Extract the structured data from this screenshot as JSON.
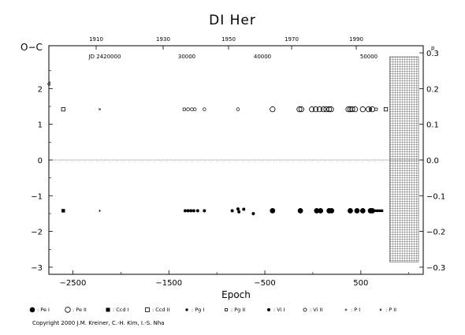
{
  "title": "DI Her",
  "copyright": "Copyright 2000 J.M. Kreiner, C.-H. Kim, I.-S. Nha",
  "legend": [
    {
      "label": ": Pe I",
      "marker": "filled-circle"
    },
    {
      "label": ": Pe II",
      "marker": "open-circle"
    },
    {
      "label": ": Ccd I",
      "marker": "filled-square"
    },
    {
      "label": ": Ccd II",
      "marker": "open-square"
    },
    {
      "label": ": Pg I",
      "marker": "small-filled-square"
    },
    {
      "label": ": Pg II",
      "marker": "small-open-square"
    },
    {
      "label": ": Vi I",
      "marker": "small-filled-circle"
    },
    {
      "label": ": Vi II",
      "marker": "small-open-circle"
    },
    {
      "label": ": P I",
      "marker": "plus"
    },
    {
      "label": ": P II",
      "marker": "cross"
    }
  ],
  "chart_data": {
    "type": "scatter",
    "title": "DI Her",
    "xlabel": "Epoch",
    "ylabel": "O−C",
    "y_unit_label": "d",
    "right_unit_label": "p",
    "xlim": [
      -2750,
      1150
    ],
    "ylim": [
      -3.2,
      3.2
    ],
    "x_ticks": [
      -2500,
      -1500,
      -500,
      500
    ],
    "y_ticks": [
      -3,
      -2,
      -1,
      0,
      1,
      2
    ],
    "right_ticks": [
      "0.3",
      "0.2",
      "0.1",
      "0.0",
      "−0.1",
      "−0.2",
      "−0.3"
    ],
    "top_year_ticks": [
      "1910",
      "1930",
      "1950",
      "1970",
      "1990"
    ],
    "top_jd_ticks": [
      "JD 2420000",
      "30000",
      "40000",
      "50000"
    ],
    "zero_line": true,
    "hatched_region_start_epoch": 800,
    "series": [
      {
        "name": "Pe I",
        "marker": "filled-circle",
        "points": [
          [
            -420,
            -1.42
          ],
          [
            -130,
            -1.42
          ],
          [
            40,
            -1.42
          ],
          [
            80,
            -1.42
          ],
          [
            170,
            -1.42
          ],
          [
            195,
            -1.42
          ],
          [
            390,
            -1.42
          ],
          [
            460,
            -1.42
          ],
          [
            520,
            -1.42
          ],
          [
            600,
            -1.42
          ],
          [
            620,
            -1.42
          ]
        ]
      },
      {
        "name": "Pe II",
        "marker": "open-circle",
        "points": [
          [
            -420,
            1.42
          ],
          [
            -140,
            1.42
          ],
          [
            -120,
            1.42
          ],
          [
            -10,
            1.42
          ],
          [
            30,
            1.42
          ],
          [
            70,
            1.42
          ],
          [
            110,
            1.42
          ],
          [
            140,
            1.42
          ],
          [
            170,
            1.42
          ],
          [
            190,
            1.42
          ],
          [
            370,
            1.42
          ],
          [
            390,
            1.42
          ],
          [
            410,
            1.42
          ],
          [
            440,
            1.42
          ],
          [
            520,
            1.42
          ],
          [
            580,
            1.42
          ],
          [
            620,
            1.42
          ]
        ]
      },
      {
        "name": "Ccd I",
        "marker": "filled-square",
        "points": [
          [
            -2600,
            -1.42
          ]
        ]
      },
      {
        "name": "Ccd II",
        "marker": "open-square",
        "points": [
          [
            -2600,
            1.42
          ],
          [
            760,
            1.42
          ]
        ]
      },
      {
        "name": "Pg I",
        "marker": "small-filled-square",
        "points": [
          [
            640,
            -1.42
          ],
          [
            660,
            -1.42
          ],
          [
            680,
            -1.42
          ],
          [
            700,
            -1.42
          ],
          [
            720,
            -1.42
          ]
        ]
      },
      {
        "name": "Pg II",
        "marker": "small-open-square",
        "points": [
          [
            -1340,
            1.42
          ],
          [
            600,
            1.42
          ],
          [
            660,
            1.42
          ]
        ]
      },
      {
        "name": "Vi I",
        "marker": "small-filled-circle",
        "points": [
          [
            -1330,
            -1.42
          ],
          [
            -1300,
            -1.42
          ],
          [
            -1270,
            -1.42
          ],
          [
            -1240,
            -1.42
          ],
          [
            -1200,
            -1.42
          ],
          [
            -1130,
            -1.42
          ],
          [
            -840,
            -1.42
          ],
          [
            -780,
            -1.37
          ],
          [
            -770,
            -1.45
          ],
          [
            -720,
            -1.38
          ],
          [
            -620,
            -1.5
          ]
        ]
      },
      {
        "name": "Vi II",
        "marker": "small-open-circle",
        "points": [
          [
            -1300,
            1.42
          ],
          [
            -1260,
            1.42
          ],
          [
            -1230,
            1.42
          ],
          [
            -1130,
            1.42
          ],
          [
            -780,
            1.42
          ]
        ]
      },
      {
        "name": "P I",
        "marker": "plus",
        "points": [
          [
            -2220,
            -1.42
          ]
        ]
      },
      {
        "name": "P II",
        "marker": "cross",
        "points": [
          [
            -2220,
            1.42
          ]
        ]
      }
    ]
  }
}
